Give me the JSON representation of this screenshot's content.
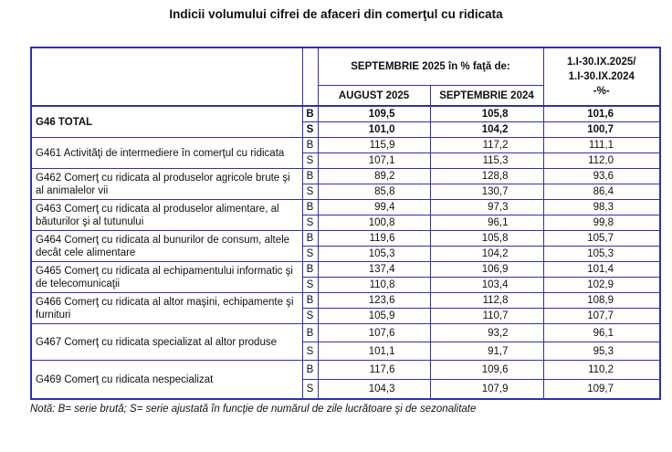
{
  "title": "Indicii volumului cifrei de afaceri din comerţul cu ridicata",
  "header": {
    "group_label": "SEPTEMBRIE 2025 în % faţă de:",
    "col_aug": "AUGUST 2025",
    "col_sep": "SEPTEMBRIE 2024",
    "col_ytd_line1": "1.I-30.IX.2025/",
    "col_ytd_line2": "1.I-30.IX.2024",
    "col_ytd_line3": "-%-"
  },
  "rows": [
    {
      "label": "G46 TOTAL",
      "bold": true,
      "B": [
        "109,5",
        "105,8",
        "101,6"
      ],
      "S": [
        "101,0",
        "104,2",
        "100,7"
      ]
    },
    {
      "label": "G461 Activităţi de intermediere în comerţul cu ridicata",
      "B": [
        "115,9",
        "117,2",
        "111,1"
      ],
      "S": [
        "107,1",
        "115,3",
        "112,0"
      ]
    },
    {
      "label": "G462 Comerţ cu ridicata al produselor  agricole brute şi al animalelor vii",
      "B": [
        "89,2",
        "128,8",
        "93,6"
      ],
      "S": [
        "85,8",
        "130,7",
        "86,4"
      ]
    },
    {
      "label": "G463 Comerţ cu ridicata al produselor alimentare, al băuturilor şi al tutunului",
      "B": [
        "99,4",
        "97,3",
        "98,3"
      ],
      "S": [
        "100,8",
        "96,1",
        "99,8"
      ]
    },
    {
      "label": "G464 Comerţ cu ridicata al bunurilor de consum, altele decât cele alimentare",
      "B": [
        "119,6",
        "105,8",
        "105,7"
      ],
      "S": [
        "105,3",
        "104,2",
        "105,3"
      ]
    },
    {
      "label": "G465 Comerţ cu ridicata al echipamentului informatic şi de telecomunicaţii",
      "B": [
        "137,4",
        "106,9",
        "101,4"
      ],
      "S": [
        "110,8",
        "103,4",
        "102,9"
      ]
    },
    {
      "label": "G466 Comerţ cu ridicata al altor maşini, echipamente şi furnituri",
      "B": [
        "123,6",
        "112,8",
        "108,9"
      ],
      "S": [
        "105,9",
        "110,7",
        "107,7"
      ]
    },
    {
      "label": "G467 Comerţ cu ridicata specializat al altor produse",
      "B": [
        "107,6",
        "93,2",
        "96,1"
      ],
      "S": [
        "101,1",
        "91,7",
        "95,3"
      ]
    },
    {
      "label": "G469 Comerţ cu ridicata nespecializat",
      "B": [
        "117,6",
        "109,6",
        "110,2"
      ],
      "S": [
        "104,3",
        "107,9",
        "109,7"
      ]
    }
  ],
  "series_labels": {
    "B": "B",
    "S": "S"
  },
  "note": "Notă: B= serie brută; S= serie ajustată în funcţie de numărul de zile lucrătoare şi de sezonalitate"
}
